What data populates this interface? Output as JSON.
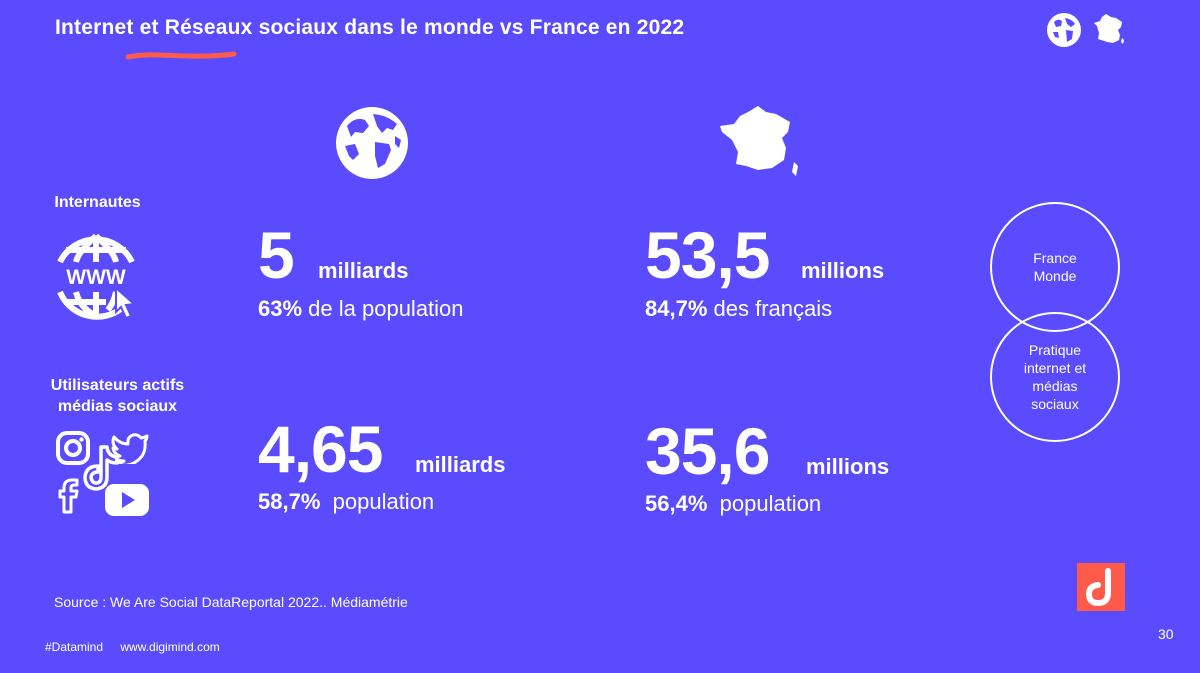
{
  "title": "Internet et Réseaux sociaux dans le monde vs France en 2022",
  "rows": {
    "internautes_label": "Internautes",
    "social_label_line1": "Utilisateurs actifs",
    "social_label_line2": "médias sociaux"
  },
  "world": {
    "internet_value": "5",
    "internet_unit": "milliards",
    "internet_pct": "63%",
    "internet_pct_text": "de la population",
    "social_value": "4,65",
    "social_unit": "milliards",
    "social_pct": "58,7%",
    "social_pct_text": "population"
  },
  "france": {
    "internet_value": "53,5",
    "internet_unit": "millions",
    "internet_pct": "84,7%",
    "internet_pct_text": "des français",
    "social_value": "35,6",
    "social_unit": "millions",
    "social_pct": "56,4%",
    "social_pct_text": "population"
  },
  "venn": {
    "top_line1": "France",
    "top_line2": "Monde",
    "bottom_line1": "Pratique",
    "bottom_line2": "internet et",
    "bottom_line3": "médias",
    "bottom_line4": "sociaux"
  },
  "source": "Source : We Are Social DataReportal 2022..  Médiamétrie",
  "footer": {
    "hashtag": "#Datamind",
    "website": "www.digimind.com"
  },
  "page_number": "30",
  "colors": {
    "background": "#5b4bff",
    "accent": "#ff5a4a",
    "text": "#ffffff"
  },
  "icons": [
    "globe-icon",
    "france-map-icon",
    "www-globe-icon",
    "instagram-icon",
    "twitter-icon",
    "tiktok-icon",
    "facebook-icon",
    "youtube-icon",
    "digimind-logo"
  ]
}
